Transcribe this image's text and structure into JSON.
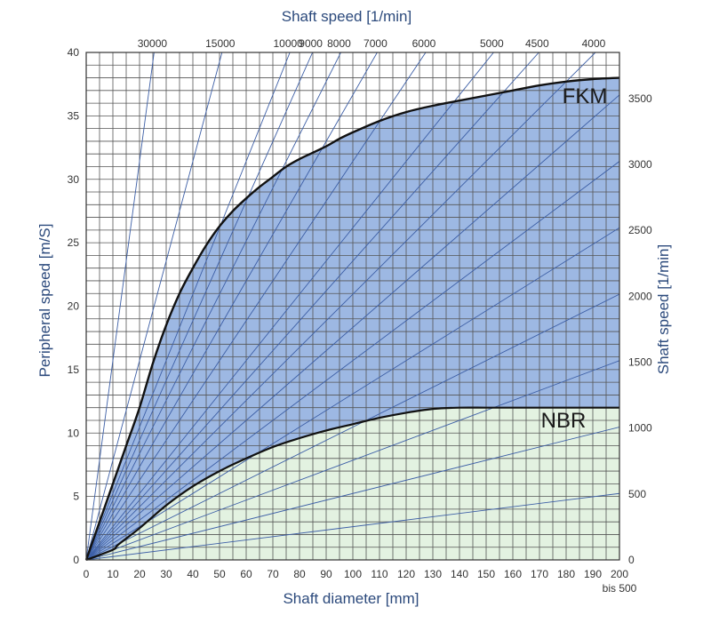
{
  "chart_data": {
    "type": "area",
    "title": "",
    "top_axis_label": "Shaft speed [1/min]",
    "xlabel": "Shaft diameter [mm]",
    "ylabel": "Peripheral speed [m/S]",
    "right_axis_label": "Shaft speed [1/min]",
    "xlim": [
      0,
      200
    ],
    "ylim": [
      0,
      40
    ],
    "x_ticks": [
      0,
      10,
      20,
      30,
      40,
      50,
      60,
      70,
      80,
      90,
      100,
      110,
      120,
      130,
      140,
      150,
      160,
      170,
      180,
      190,
      200
    ],
    "x_tick_note": "bis 500",
    "y_ticks": [
      0,
      5,
      10,
      15,
      20,
      25,
      30,
      35,
      40
    ],
    "right_ticks": [
      0,
      500,
      1000,
      1500,
      2000,
      2500,
      3000,
      3500
    ],
    "top_ticks": [
      30000,
      15000,
      10000,
      9000,
      8000,
      7000,
      6000,
      5000,
      4500,
      4000
    ],
    "grid": true,
    "series": [
      {
        "name": "FKM",
        "fill": "#9db8e3",
        "x": [
          0,
          5,
          10,
          15,
          20,
          25,
          30,
          35,
          40,
          45,
          50,
          55,
          60,
          65,
          70,
          75,
          80,
          85,
          90,
          95,
          100,
          110,
          120,
          130,
          140,
          150,
          160,
          170,
          180,
          190,
          200
        ],
        "y": [
          0,
          3,
          6,
          9,
          12,
          15.5,
          18.5,
          21,
          23,
          24.8,
          26.3,
          27.5,
          28.5,
          29.4,
          30.2,
          31.0,
          31.6,
          32.1,
          32.6,
          33.2,
          33.7,
          34.6,
          35.3,
          35.8,
          36.2,
          36.6,
          37.0,
          37.4,
          37.7,
          37.9,
          38.0
        ]
      },
      {
        "name": "NBR",
        "fill": "#e3f2e1",
        "x": [
          0,
          10,
          12,
          20,
          30,
          40,
          50,
          60,
          70,
          80,
          90,
          100,
          110,
          120,
          130,
          140,
          150,
          160,
          170,
          180,
          190,
          200
        ],
        "y": [
          0,
          0.8,
          1.2,
          2.5,
          4.3,
          5.8,
          7.0,
          8.0,
          8.9,
          9.6,
          10.2,
          10.7,
          11.2,
          11.6,
          11.9,
          12.0,
          12.0,
          12.0,
          12.0,
          12.0,
          12.0,
          12.0
        ]
      }
    ],
    "speed_lines_rpm": [
      30000,
      15000,
      10000,
      9000,
      8000,
      7000,
      6000,
      5000,
      4500,
      4000,
      3500,
      3000,
      2500,
      2000,
      1500,
      1000,
      500
    ]
  }
}
